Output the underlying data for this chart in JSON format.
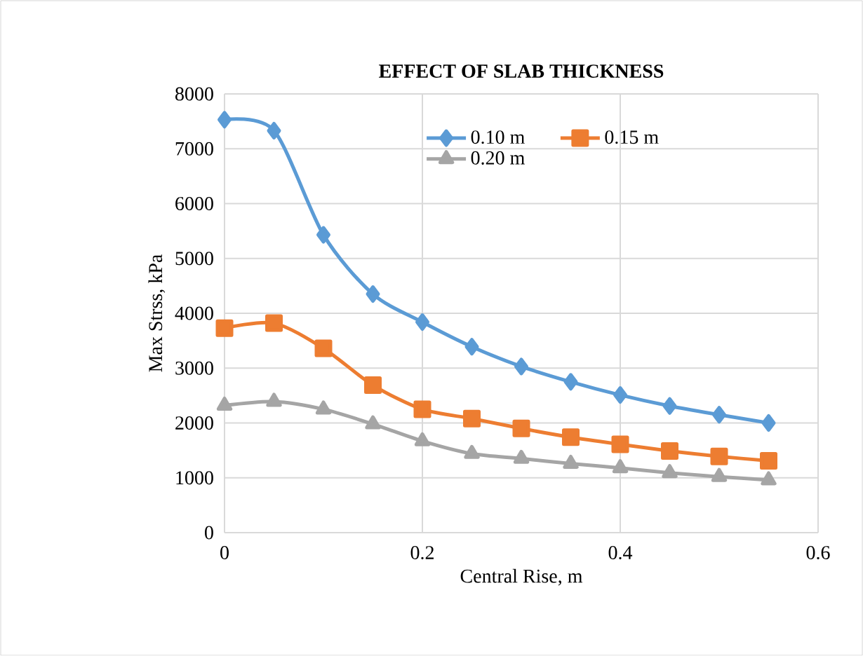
{
  "chart_data": {
    "type": "line",
    "title": "EFFECT OF SLAB THICKNESS",
    "xlabel": "Central Rise, m",
    "ylabel": "Max Strss, kPa",
    "x": [
      0,
      0.05,
      0.1,
      0.15,
      0.2,
      0.25,
      0.3,
      0.35,
      0.4,
      0.45,
      0.5,
      0.55
    ],
    "series": [
      {
        "name": "0.10 m",
        "color": "#5b9bd5",
        "marker": "diamond",
        "values": [
          7530,
          7330,
          5430,
          4350,
          3840,
          3390,
          3030,
          2750,
          2510,
          2310,
          2150,
          2000
        ]
      },
      {
        "name": "0.15 m",
        "color": "#ed7d31",
        "marker": "square",
        "values": [
          3730,
          3820,
          3360,
          2690,
          2250,
          2080,
          1900,
          1740,
          1610,
          1490,
          1390,
          1310
        ]
      },
      {
        "name": "0.20 m",
        "color": "#a5a5a5",
        "marker": "triangle",
        "values": [
          2320,
          2390,
          2250,
          1980,
          1670,
          1440,
          1350,
          1260,
          1180,
          1090,
          1020,
          960
        ]
      }
    ],
    "xlim": [
      0,
      0.6
    ],
    "xticks": [
      0,
      0.2,
      0.4,
      0.6
    ],
    "ylim": [
      0,
      8000
    ],
    "yticks": [
      0,
      1000,
      2000,
      3000,
      4000,
      5000,
      6000,
      7000,
      8000
    ],
    "grid": true,
    "legend": "top right",
    "line_style": "solid"
  }
}
